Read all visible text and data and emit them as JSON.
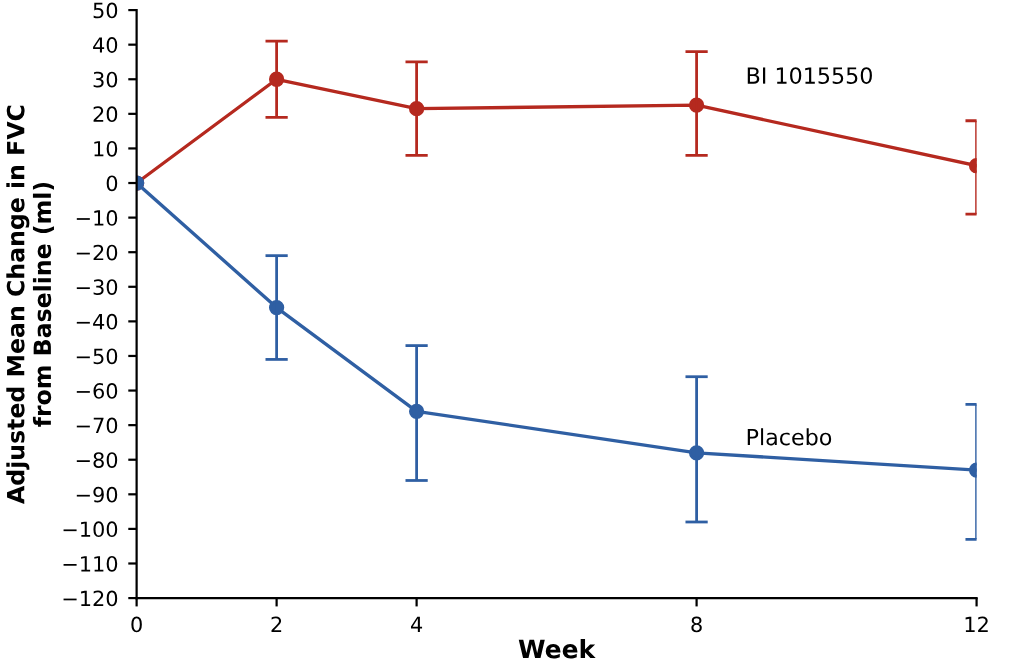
{
  "chart_data": {
    "type": "line",
    "xlabel": "Week",
    "ylabel": "Adjusted Mean Change in FVC\nfrom Baseline (ml)",
    "x": [
      0,
      2,
      4,
      8,
      12
    ],
    "series": [
      {
        "name": "BI 1015550",
        "color": "#b5291f",
        "values": [
          0,
          30,
          21.5,
          22.5,
          5
        ],
        "errors": [
          null,
          [
            19,
            41
          ],
          [
            8,
            35
          ],
          [
            8,
            38
          ],
          [
            -9,
            18
          ]
        ]
      },
      {
        "name": "Placebo",
        "color": "#2f5fa3",
        "values": [
          0,
          -36,
          -66,
          -78,
          -83
        ],
        "errors": [
          null,
          [
            -51,
            -21
          ],
          [
            -86,
            -47
          ],
          [
            -98,
            -56
          ],
          [
            -103,
            -64
          ]
        ]
      }
    ],
    "xlim": [
      0,
      12
    ],
    "xticks": [
      0,
      2,
      4,
      8,
      12
    ],
    "ylim": [
      -120,
      50
    ],
    "yticks": [
      -120,
      -110,
      -100,
      -90,
      -80,
      -70,
      -60,
      -50,
      -40,
      -30,
      -20,
      -10,
      0,
      10,
      20,
      30,
      40,
      50
    ],
    "marker": "circle",
    "line_style": "solid",
    "grid": false,
    "legend": false
  }
}
